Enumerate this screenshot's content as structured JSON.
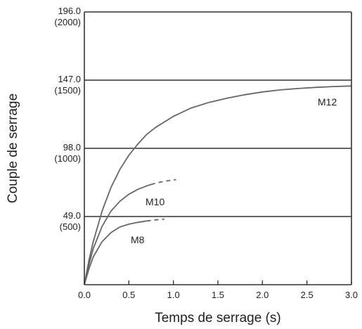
{
  "chart_data": {
    "type": "line",
    "title": "",
    "xlabel": "Temps de serrage (s)",
    "ylabel": "Couple de serrage",
    "xlim": [
      0,
      3.0
    ],
    "ylim": [
      0,
      196.0
    ],
    "x_ticks": [
      "0.0",
      "0.5",
      "1.0",
      "1.5",
      "2.0",
      "2.5",
      "3.0"
    ],
    "y_ticks": [
      {
        "value": 196.0,
        "label": "196.0",
        "sub": "(2000)"
      },
      {
        "value": 147.0,
        "label": "147.0",
        "sub": "(1500)"
      },
      {
        "value": 98.0,
        "label": "98.0",
        "sub": "(1000)"
      },
      {
        "value": 49.0,
        "label": "49.0",
        "sub": "(500)"
      }
    ],
    "grid": "horizontal",
    "series": [
      {
        "name": "M12",
        "color": "#666666",
        "x": [
          0,
          0.05,
          0.1,
          0.2,
          0.3,
          0.4,
          0.5,
          0.6,
          0.7,
          0.8,
          1.0,
          1.2,
          1.4,
          1.6,
          1.8,
          2.0,
          2.2,
          2.4,
          2.6,
          2.8,
          3.0
        ],
        "y": [
          0,
          17,
          31,
          53,
          70,
          83,
          93,
          101,
          108,
          113,
          121,
          127,
          131,
          134,
          136.5,
          138.5,
          140,
          141,
          141.8,
          142.4,
          142.8
        ],
        "dashed_from": null
      },
      {
        "name": "M10",
        "color": "#666666",
        "x": [
          0,
          0.05,
          0.1,
          0.2,
          0.3,
          0.4,
          0.5,
          0.6,
          0.7,
          0.75,
          0.8,
          0.9,
          1.0,
          1.03
        ],
        "y": [
          0,
          14,
          26,
          42,
          53,
          60,
          65,
          68.5,
          71,
          72,
          73,
          74.3,
          75.3,
          75.5
        ],
        "dashed_from": 0.75
      },
      {
        "name": "M8",
        "color": "#666666",
        "x": [
          0,
          0.05,
          0.1,
          0.2,
          0.3,
          0.4,
          0.5,
          0.6,
          0.7,
          0.8,
          0.9
        ],
        "y": [
          0,
          11,
          20,
          31,
          37.5,
          41.5,
          43.5,
          44.8,
          45.8,
          46.6,
          47.2
        ],
        "dashed_from": 0.7
      }
    ]
  }
}
